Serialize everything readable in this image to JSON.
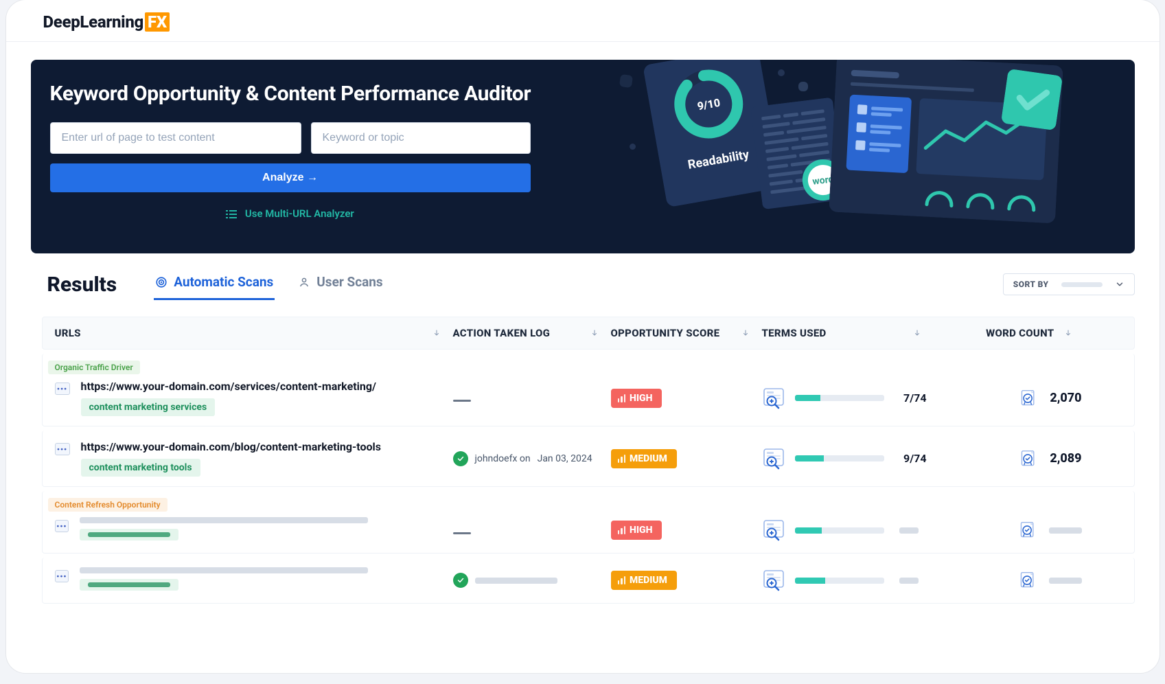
{
  "brand": {
    "name": "DeepLearning",
    "suffix": "FX"
  },
  "hero": {
    "title": "Keyword Opportunity & Content Performance Auditor",
    "url_placeholder": "Enter url of page to test content",
    "keyword_placeholder": "Keyword or topic",
    "analyze_label": "Analyze",
    "multi_link": "Use Multi-URL Analyzer",
    "readability_card": {
      "label": "Readability",
      "score": "9/10"
    },
    "word_bubble": "word",
    "colors": {
      "bg": "#0e1b33",
      "accent_teal": "#22b8a5",
      "accent_blue": "#246fe6"
    }
  },
  "results": {
    "heading": "Results",
    "tabs": {
      "automatic": "Automatic Scans",
      "user": "User Scans"
    },
    "sort_by": "SORT BY"
  },
  "columns": {
    "urls": "URLS",
    "action": "ACTION TAKEN LOG",
    "score": "OPPORTUNITY SCORE",
    "terms": "TERMS USED",
    "words": "WORD COUNT"
  },
  "badges": {
    "organic": "Organic Traffic Driver",
    "refresh": "Content Refresh Opportunity"
  },
  "rows": [
    {
      "url": "https://www.your-domain.com/services/content-marketing/",
      "keyword": "content marketing services",
      "action_user": null,
      "action_date": null,
      "score_label": "HIGH",
      "score_level": "high",
      "terms_used": "7/74",
      "terms_pct": 29,
      "word_count": "2,070"
    },
    {
      "url": "https://www.your-domain.com/blog/content-marketing-tools",
      "keyword": "content marketing tools",
      "action_user": "johndoefx on",
      "action_date": "Jan 03, 2024",
      "score_label": "MEDIUM",
      "score_level": "medium",
      "terms_used": "9/74",
      "terms_pct": 33,
      "word_count": "2,089"
    },
    {
      "url": null,
      "keyword": null,
      "action_user": null,
      "action_date": null,
      "score_label": "HIGH",
      "score_level": "high",
      "terms_used": null,
      "terms_pct": 30,
      "word_count": null
    },
    {
      "url": null,
      "keyword": null,
      "action_user": "",
      "action_date": null,
      "score_label": "MEDIUM",
      "score_level": "medium",
      "terms_used": null,
      "terms_pct": 34,
      "word_count": null
    }
  ],
  "styling": {
    "score_colors": {
      "high": "#f4645f",
      "medium": "#f59e0b"
    },
    "progress_bg": "#e6ebf2",
    "progress_fill": "#30c9b3",
    "tab_active": "#1d62d9",
    "tab_inactive": "#718096",
    "chip_green_text": "#4aa24a",
    "chip_green_bg": "#eaf6ea",
    "chip_orange_text": "#e38a2c",
    "chip_orange_bg": "#fdf1e3",
    "kw_chip_text": "#1d8f5c",
    "kw_chip_bg": "#e4f5ec"
  }
}
